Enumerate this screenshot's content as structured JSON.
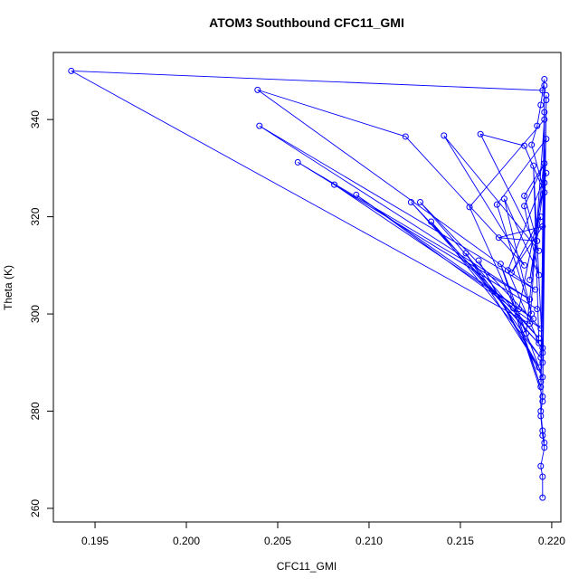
{
  "chart_data": {
    "type": "line",
    "title": "ATOM3 Southbound CFC11_GMI",
    "x_label": "CFC11_GMI",
    "y_label": "Theta (K)",
    "marker": "circle-open",
    "x": [
      0.2195,
      0.2195,
      0.2194,
      0.2196,
      0.2195,
      0.2194,
      0.2195,
      0.2179,
      0.2194,
      0.2172,
      0.2195,
      0.216,
      0.2193,
      0.2153,
      0.2194,
      0.2134,
      0.2195,
      0.2123,
      0.2193,
      0.2128,
      0.2194,
      0.2093,
      0.219,
      0.2081,
      0.2192,
      0.2061,
      0.2188,
      0.204,
      0.2191,
      0.2039,
      0.212,
      0.2185,
      0.2141,
      0.2193,
      0.2161,
      0.2185,
      0.2196,
      0.2189,
      0.2192,
      0.2194,
      0.2196,
      0.2195,
      0.1937,
      0.2188,
      0.2196,
      0.2155,
      0.2186,
      0.2197,
      0.217,
      0.2189,
      0.2174,
      0.2193,
      0.2185,
      0.2196,
      0.2185,
      0.2192,
      0.2171,
      0.2195,
      0.2178,
      0.2194,
      0.2188,
      0.2196,
      0.2182,
      0.2197,
      0.2176,
      0.2193,
      0.219,
      0.2195,
      0.2197,
      0.2195,
      0.2196,
      0.2194,
      0.2197,
      0.2195,
      0.2196,
      0.2194,
      0.2195,
      0.2196
    ],
    "series": [
      {
        "color": "#0000ff",
        "values": [
          262.2,
          266.5,
          268.7,
          272.5,
          275.0,
          279.0,
          283.0,
          301.2,
          285.0,
          310.3,
          287.0,
          311.0,
          289.0,
          312.5,
          291.0,
          319.0,
          293.0,
          323.0,
          295.0,
          323.0,
          297.0,
          324.5,
          299.0,
          326.6,
          301.0,
          331.2,
          303.0,
          338.7,
          305.0,
          346.1,
          336.5,
          310.0,
          336.7,
          313.0,
          337.0,
          334.6,
          325.0,
          334.8,
          338.7,
          343.0,
          348.3,
          346.0,
          350.0,
          298.0,
          340.0,
          322.0,
          296.0,
          336.0,
          322.5,
          300.0,
          323.7,
          308.0,
          322.2,
          331.0,
          324.3,
          315.0,
          315.7,
          318.0,
          308.5,
          320.0,
          307.0,
          327.0,
          301.0,
          329.0,
          309.0,
          294.0,
          330.5,
          292.0,
          345.0,
          290.0,
          347.0,
          286.0,
          344.0,
          282.0,
          341.5,
          280.0,
          276.0,
          273.5
        ]
      }
    ],
    "xlim": [
      0.19272,
      0.2205
    ],
    "ylim": [
      257.2,
      353.8
    ],
    "xticks": [
      0.195,
      {
        "value": 0.2,
        "label": "0.200"
      },
      0.205,
      {
        "value": 0.21,
        "label": "0.210"
      },
      0.215,
      {
        "value": 0.22,
        "label": "0.220"
      }
    ],
    "yticks": [
      260,
      280,
      300,
      320,
      340
    ]
  }
}
